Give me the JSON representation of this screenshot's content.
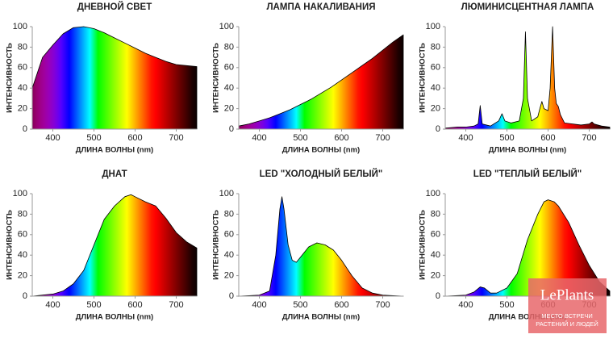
{
  "chart_data": [
    {
      "type": "area",
      "title": "ДНЕВНОЙ СВЕТ",
      "xlabel": "ДЛИНА ВОЛНЫ (nm)",
      "ylabel": "ИНТЕНСИВНОСТЬ",
      "x": [
        350,
        375,
        400,
        425,
        450,
        475,
        500,
        525,
        550,
        575,
        600,
        625,
        650,
        675,
        700,
        725,
        750
      ],
      "values": [
        40,
        70,
        82,
        93,
        99,
        100,
        98,
        94,
        89,
        84,
        79,
        74,
        70,
        66,
        63,
        62,
        61
      ],
      "xlim": [
        350,
        750
      ],
      "ylim": [
        0,
        100
      ],
      "xticks": [
        400,
        500,
        600,
        700
      ],
      "yticks": [
        0,
        20,
        40,
        60,
        80,
        100
      ],
      "line_color": "#000000"
    },
    {
      "type": "area",
      "title": "ЛАМПА НАКАЛИВАНИЯ",
      "xlabel": "ДЛИНА ВОЛНЫ (nm)",
      "ylabel": "ИНТЕНСИВНОСТЬ",
      "x": [
        350,
        375,
        400,
        425,
        450,
        475,
        500,
        525,
        550,
        575,
        600,
        625,
        650,
        675,
        700,
        725,
        750
      ],
      "values": [
        3,
        5,
        8,
        11,
        15,
        19,
        24,
        29,
        35,
        41,
        48,
        55,
        62,
        69,
        77,
        85,
        92
      ],
      "xlim": [
        350,
        750
      ],
      "ylim": [
        0,
        100
      ],
      "xticks": [
        400,
        500,
        600,
        700
      ],
      "yticks": [
        0,
        20,
        40,
        60,
        80,
        100
      ],
      "line_color": "#000000"
    },
    {
      "type": "area",
      "title": "ЛЮМИНИСЦЕНТНАЯ ЛАМПА",
      "xlabel": "ДЛИНА ВОЛНЫ (nm)",
      "ylabel": "ИНТЕНСИВНОСТЬ",
      "x": [
        350,
        380,
        400,
        420,
        430,
        435,
        440,
        460,
        480,
        488,
        495,
        510,
        530,
        540,
        545,
        550,
        560,
        575,
        580,
        585,
        590,
        600,
        605,
        611,
        616,
        620,
        625,
        630,
        640,
        660,
        680,
        700,
        707,
        712,
        730,
        750
      ],
      "values": [
        1,
        2,
        2,
        3,
        5,
        23,
        5,
        3,
        8,
        15,
        8,
        6,
        8,
        30,
        95,
        30,
        8,
        12,
        20,
        27,
        20,
        18,
        40,
        100,
        40,
        25,
        22,
        14,
        6,
        5,
        4,
        5,
        7,
        5,
        3,
        2
      ],
      "xlim": [
        350,
        750
      ],
      "ylim": [
        0,
        100
      ],
      "xticks": [
        400,
        500,
        600,
        700
      ],
      "yticks": [
        0,
        20,
        40,
        60,
        80,
        100
      ],
      "line_color": "#000000"
    },
    {
      "type": "area",
      "title": "ДНАТ",
      "xlabel": "ДЛИНА ВОЛНЫ (nm)",
      "ylabel": "ИНТЕНСИВНОСТЬ",
      "x": [
        350,
        400,
        425,
        450,
        475,
        500,
        525,
        550,
        575,
        590,
        600,
        625,
        650,
        675,
        700,
        725,
        750
      ],
      "values": [
        0,
        2,
        5,
        12,
        25,
        50,
        75,
        88,
        97,
        99,
        97,
        92,
        88,
        76,
        62,
        53,
        47
      ],
      "xlim": [
        350,
        750
      ],
      "ylim": [
        0,
        100
      ],
      "xticks": [
        400,
        500,
        600,
        700
      ],
      "yticks": [
        0,
        20,
        40,
        60,
        80,
        100
      ],
      "line_color": "#000000"
    },
    {
      "type": "area",
      "title": "LED \"ХОЛОДНЫЙ БЕЛЫЙ\"",
      "xlabel": "ДЛИНА ВОЛНЫ (nm)",
      "ylabel": "ИНТЕНСИВНОСТЬ",
      "x": [
        350,
        400,
        425,
        440,
        450,
        455,
        460,
        470,
        480,
        490,
        500,
        520,
        540,
        560,
        580,
        600,
        625,
        650,
        675,
        700,
        750
      ],
      "values": [
        0,
        1,
        5,
        40,
        85,
        97,
        85,
        50,
        35,
        33,
        38,
        48,
        52,
        50,
        45,
        35,
        20,
        8,
        3,
        1,
        0
      ],
      "xlim": [
        350,
        750
      ],
      "ylim": [
        0,
        100
      ],
      "xticks": [
        400,
        500,
        600,
        700
      ],
      "yticks": [
        0,
        20,
        40,
        60,
        80,
        100
      ],
      "line_color": "#000000"
    },
    {
      "type": "area",
      "title": "LED \"ТЕПЛЫЙ БЕЛЫЙ\"",
      "xlabel": "ДЛИНА ВОЛНЫ (nm)",
      "ylabel": "ИНТЕНСИВНОСТЬ",
      "x": [
        350,
        400,
        420,
        435,
        445,
        460,
        475,
        500,
        525,
        550,
        575,
        590,
        600,
        615,
        625,
        650,
        675,
        700,
        725,
        750
      ],
      "values": [
        0,
        1,
        4,
        9,
        8,
        3,
        3,
        8,
        22,
        55,
        80,
        92,
        94,
        92,
        88,
        72,
        50,
        30,
        14,
        5
      ],
      "xlim": [
        350,
        750
      ],
      "ylim": [
        0,
        100
      ],
      "xticks": [
        400,
        500,
        600,
        700
      ],
      "yticks": [
        0,
        20,
        40,
        60,
        80,
        100
      ],
      "line_color": "#000000"
    }
  ],
  "watermark": {
    "title": "LePlants",
    "lines": [
      "МЕСТО ВСТРЕЧИ",
      "РАСТЕНИЙ И ЛЮДЕЙ"
    ]
  }
}
